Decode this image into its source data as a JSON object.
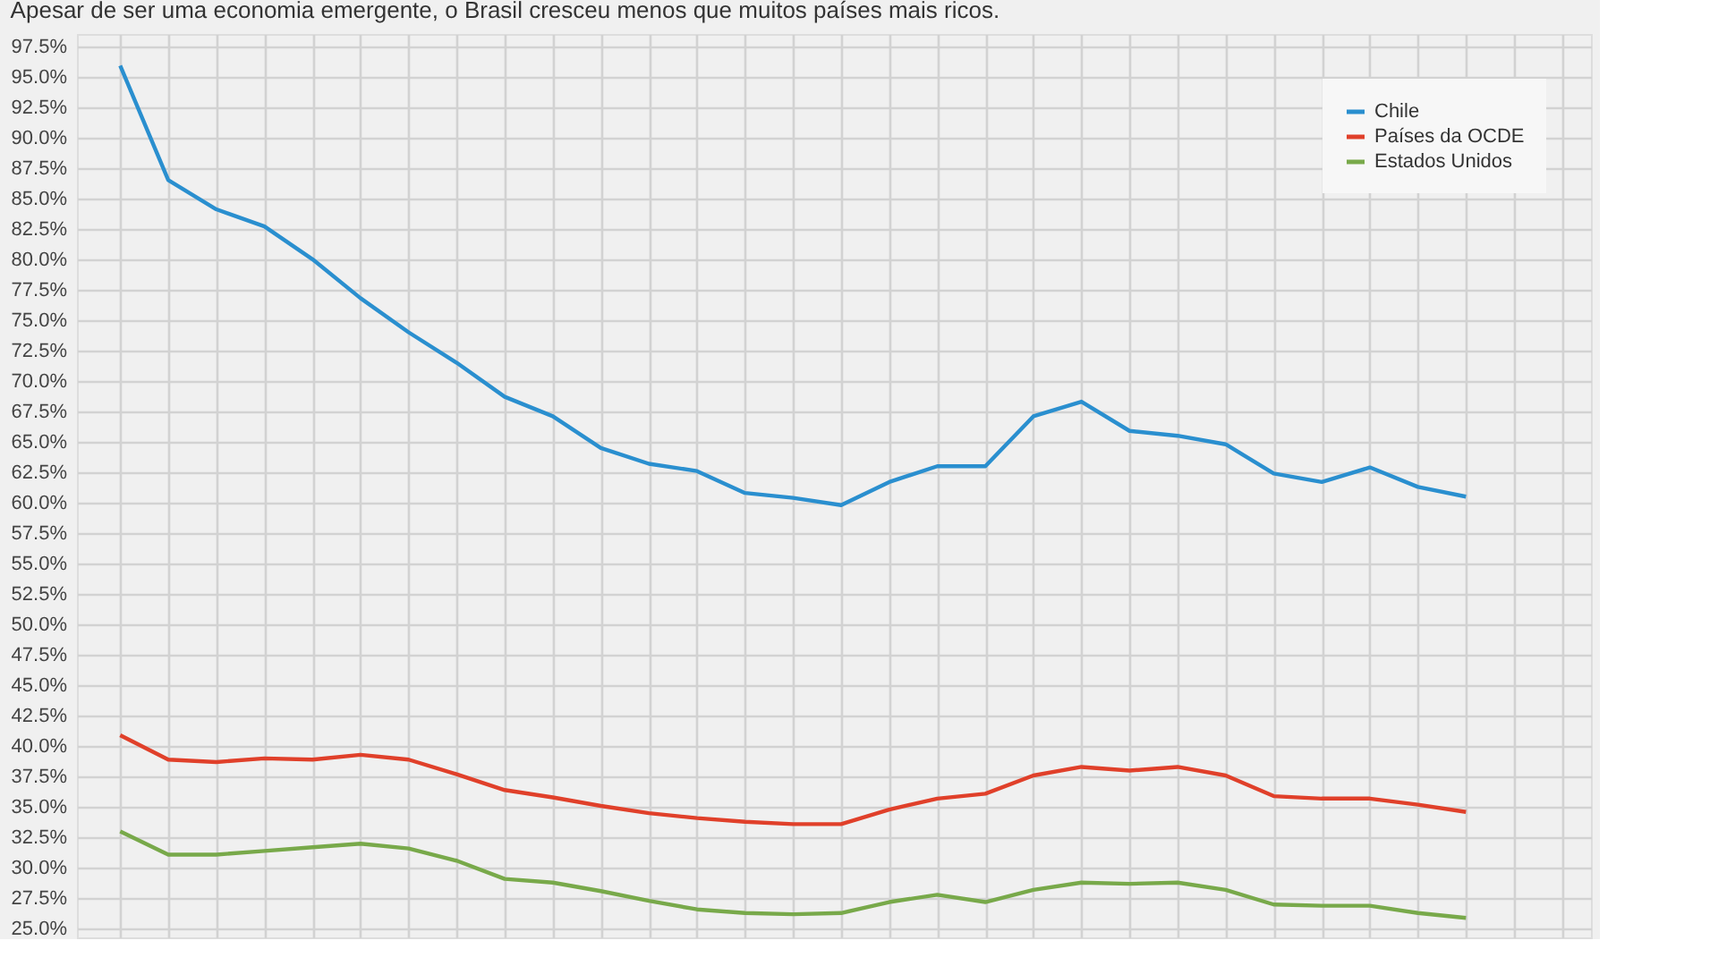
{
  "chart_data": {
    "type": "line",
    "subtitle": "Apesar de ser uma economia emergente, o Brasil cresceu menos que muitos países mais ricos.",
    "categories": [
      null,
      null,
      null,
      null,
      null,
      null,
      null,
      null,
      null,
      null,
      null,
      null,
      null,
      null,
      null,
      null,
      null,
      null,
      null,
      null,
      null,
      null,
      null,
      null,
      null,
      null,
      null,
      null,
      null,
      null,
      null
    ],
    "series": [
      {
        "name": "Chile",
        "color": "#2a8fcf",
        "values": [
          95.9,
          86.5,
          84.1,
          82.7,
          80.0,
          76.8,
          74.0,
          71.5,
          68.7,
          67.1,
          64.5,
          63.2,
          62.6,
          60.8,
          60.4,
          59.8,
          61.7,
          63.0,
          63.0,
          67.1,
          68.3,
          65.9,
          65.5,
          64.8,
          62.4,
          61.7,
          62.9,
          61.3,
          60.5,
          null,
          null
        ]
      },
      {
        "name": "Países da OCDE",
        "color": "#e0402a",
        "values": [
          40.9,
          38.9,
          38.7,
          39.0,
          38.9,
          39.3,
          38.9,
          37.7,
          36.4,
          35.8,
          35.1,
          34.5,
          34.1,
          33.8,
          33.6,
          33.6,
          34.8,
          35.7,
          36.1,
          37.6,
          38.3,
          38.0,
          38.3,
          37.6,
          35.9,
          35.7,
          35.7,
          35.2,
          34.6,
          null,
          null
        ]
      },
      {
        "name": "Estados Unidos",
        "color": "#78a94a",
        "values": [
          33.0,
          31.1,
          31.1,
          31.4,
          31.7,
          32.0,
          31.6,
          30.6,
          29.1,
          28.8,
          28.1,
          27.3,
          26.6,
          26.3,
          26.2,
          26.3,
          27.2,
          27.8,
          27.2,
          28.2,
          28.8,
          28.7,
          28.8,
          28.2,
          27.0,
          26.9,
          26.9,
          26.3,
          25.9,
          null,
          null
        ]
      }
    ],
    "ylim": [
      24.3,
      98.5
    ],
    "yticks": [
      {
        "value": 25,
        "label": "25.0%"
      },
      {
        "value": 27.5,
        "label": "27.5%"
      },
      {
        "value": 30,
        "label": "30.0%"
      },
      {
        "value": 32.5,
        "label": "32.5%"
      },
      {
        "value": 35,
        "label": "35.0%"
      },
      {
        "value": 37.5,
        "label": "37.5%"
      },
      {
        "value": 40,
        "label": "40.0%"
      },
      {
        "value": 42.5,
        "label": "42.5%"
      },
      {
        "value": 45,
        "label": "45.0%"
      },
      {
        "value": 47.5,
        "label": "47.5%"
      },
      {
        "value": 50,
        "label": "50.0%"
      },
      {
        "value": 52.5,
        "label": "52.5%"
      },
      {
        "value": 55,
        "label": "55.0%"
      },
      {
        "value": 57.5,
        "label": "57.5%"
      },
      {
        "value": 60,
        "label": "60.0%"
      },
      {
        "value": 62.5,
        "label": "62.5%"
      },
      {
        "value": 65,
        "label": "65.0%"
      },
      {
        "value": 67.5,
        "label": "67.5%"
      },
      {
        "value": 70,
        "label": "70.0%"
      },
      {
        "value": 72.5,
        "label": "72.5%"
      },
      {
        "value": 75,
        "label": "75.0%"
      },
      {
        "value": 77.5,
        "label": "77.5%"
      },
      {
        "value": 80,
        "label": "80.0%"
      },
      {
        "value": 82.5,
        "label": "82.5%"
      },
      {
        "value": 85,
        "label": "85.0%"
      },
      {
        "value": 87.5,
        "label": "87.5%"
      },
      {
        "value": 90,
        "label": "90.0%"
      },
      {
        "value": 92.5,
        "label": "92.5%"
      },
      {
        "value": 95,
        "label": "95.0%"
      },
      {
        "value": 97.5,
        "label": "97.5%"
      }
    ],
    "grid": true,
    "legend": "top right",
    "tick_labels": "y",
    "marker": "none",
    "line_style": "solid"
  }
}
